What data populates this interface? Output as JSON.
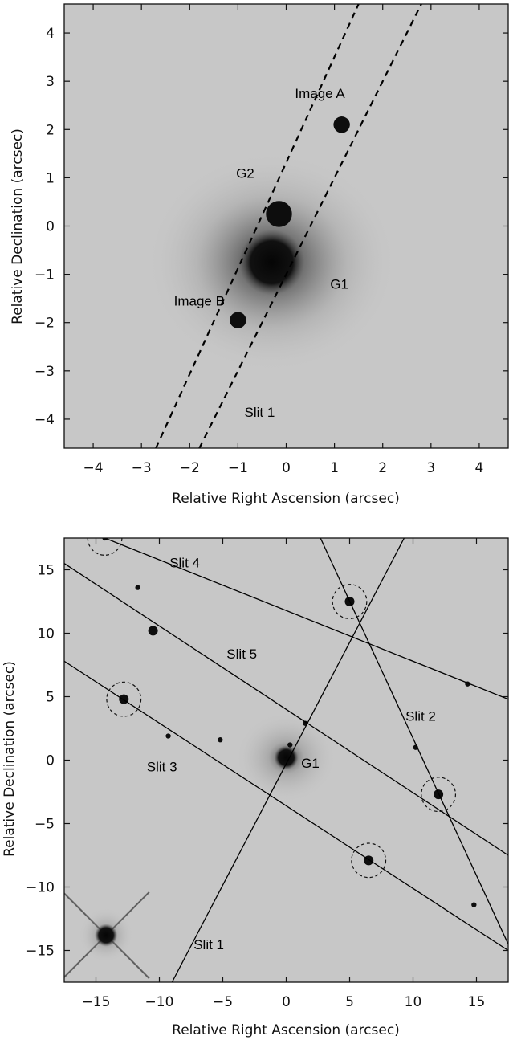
{
  "colors": {
    "background": "#c7c7c7",
    "ink": "#111111",
    "source": "#0a0a0a"
  },
  "chart_data": [
    {
      "type": "scatter",
      "panel": "top",
      "xlabel": "Relative Right Ascension (arcsec)",
      "ylabel": "Relative Declination (arcsec)",
      "xlim": [
        -4.6,
        4.6
      ],
      "ylim": [
        -4.6,
        4.6
      ],
      "x_ticks": [
        -4,
        -3,
        -2,
        -1,
        0,
        1,
        2,
        3,
        4
      ],
      "y_ticks": [
        -4,
        -3,
        -2,
        -1,
        0,
        1,
        2,
        3,
        4
      ],
      "grid": false,
      "sources": [
        {
          "name": "G1",
          "x": -0.3,
          "y": -0.75,
          "size": "large"
        },
        {
          "name": "G2",
          "x": -0.15,
          "y": 0.25,
          "size": "medium"
        },
        {
          "name": "Image A",
          "x": 1.15,
          "y": 2.1,
          "size": "small"
        },
        {
          "name": "Image B",
          "x": -1.0,
          "y": -1.95,
          "size": "small"
        }
      ],
      "slit_lines": [
        {
          "x1": -2.7,
          "y1": -4.6,
          "x2": 1.5,
          "y2": 4.6
        },
        {
          "x1": -1.8,
          "y1": -4.6,
          "x2": 2.8,
          "y2": 4.6
        }
      ],
      "annotations": [
        {
          "text": "Image A",
          "x": 0.7,
          "y": 2.65
        },
        {
          "text": "G2",
          "x": -0.85,
          "y": 1.0
        },
        {
          "text": "G1",
          "x": 1.1,
          "y": -1.3
        },
        {
          "text": "Image B",
          "x": -1.8,
          "y": -1.65
        },
        {
          "text": "Slit 1",
          "x": -0.55,
          "y": -3.95
        }
      ]
    },
    {
      "type": "scatter",
      "panel": "bottom",
      "xlabel": "Relative Right Ascension (arcsec)",
      "ylabel": "Relative Declination (arcsec)",
      "xlim": [
        -17.5,
        17.5
      ],
      "ylim": [
        -17.5,
        17.5
      ],
      "x_ticks": [
        -15,
        -10,
        -5,
        0,
        5,
        10,
        15
      ],
      "y_ticks": [
        -15,
        -10,
        -5,
        0,
        5,
        10,
        15
      ],
      "grid": false,
      "sources": [
        {
          "name": "G1",
          "x": 0.0,
          "y": 0.2,
          "size": "large"
        },
        {
          "x": 0.3,
          "y": 1.2,
          "size": "tiny"
        },
        {
          "x": 5.0,
          "y": 12.5,
          "size": "small",
          "circled": true
        },
        {
          "x": -12.8,
          "y": 4.8,
          "size": "small",
          "circled": true
        },
        {
          "x": 12.0,
          "y": -2.7,
          "size": "small",
          "circled": true
        },
        {
          "x": 6.5,
          "y": -7.9,
          "size": "small",
          "circled": true
        },
        {
          "x": -14.3,
          "y": 17.5,
          "size": "tiny",
          "circled": true
        },
        {
          "x": -10.5,
          "y": 10.2,
          "size": "small"
        },
        {
          "x": -9.3,
          "y": 1.9,
          "size": "tiny"
        },
        {
          "x": -5.2,
          "y": 1.6,
          "size": "tiny"
        },
        {
          "x": -11.7,
          "y": 13.6,
          "size": "tiny"
        },
        {
          "x": 10.2,
          "y": 1.0,
          "size": "tiny"
        },
        {
          "x": 14.3,
          "y": 6.0,
          "size": "tiny"
        },
        {
          "x": 1.5,
          "y": 2.9,
          "size": "tiny"
        },
        {
          "x": 14.8,
          "y": -11.4,
          "size": "tiny"
        },
        {
          "x": -14.2,
          "y": -13.8,
          "size": "star"
        }
      ],
      "slit_lines": [
        {
          "label": "Slit 1",
          "x1": -9.0,
          "y1": -17.5,
          "x2": 9.3,
          "y2": 17.5
        },
        {
          "label": "Slit 2",
          "x1": 2.7,
          "y1": 17.5,
          "x2": 17.5,
          "y2": -14.5
        },
        {
          "label": "Slit 3",
          "x1": -17.5,
          "y1": 7.8,
          "x2": 17.5,
          "y2": -15.0
        },
        {
          "label": "Slit 4",
          "x1": -14.3,
          "y1": 17.5,
          "x2": 17.5,
          "y2": 4.8
        },
        {
          "label": "Slit 5",
          "x1": -17.5,
          "y1": 15.5,
          "x2": 17.5,
          "y2": -7.5
        }
      ],
      "annotations": [
        {
          "text": "Slit 4",
          "x": -8.0,
          "y": 15.2
        },
        {
          "text": "Slit 5",
          "x": -3.5,
          "y": 8.0
        },
        {
          "text": "Slit 2",
          "x": 10.6,
          "y": 3.1
        },
        {
          "text": "Slit 3",
          "x": -9.8,
          "y": -0.9
        },
        {
          "text": "G1",
          "x": 1.9,
          "y": -0.6
        },
        {
          "text": "Slit 1",
          "x": -6.1,
          "y": -14.9
        }
      ]
    }
  ]
}
